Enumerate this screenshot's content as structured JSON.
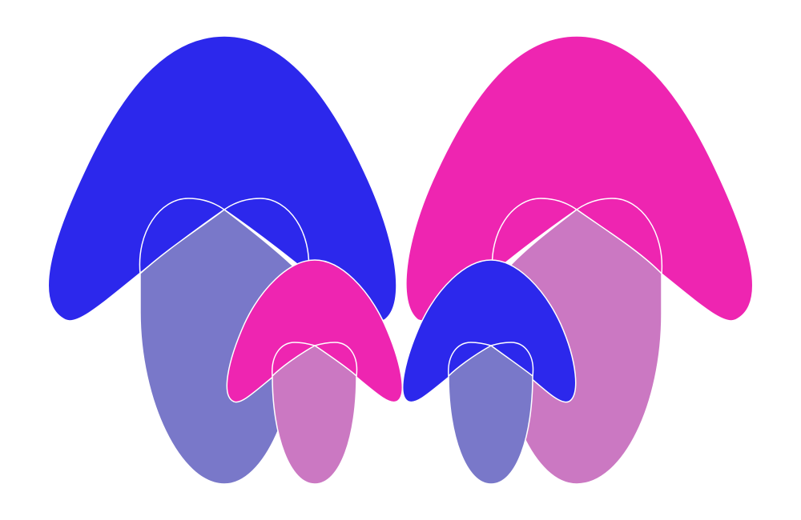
{
  "colors": {
    "background": "#ffffff",
    "blue": "#2c28ec",
    "magenta": "#ee25b1",
    "lavender": "#7978c9",
    "orchid": "#cb78c2",
    "outline": "#ffffff"
  }
}
